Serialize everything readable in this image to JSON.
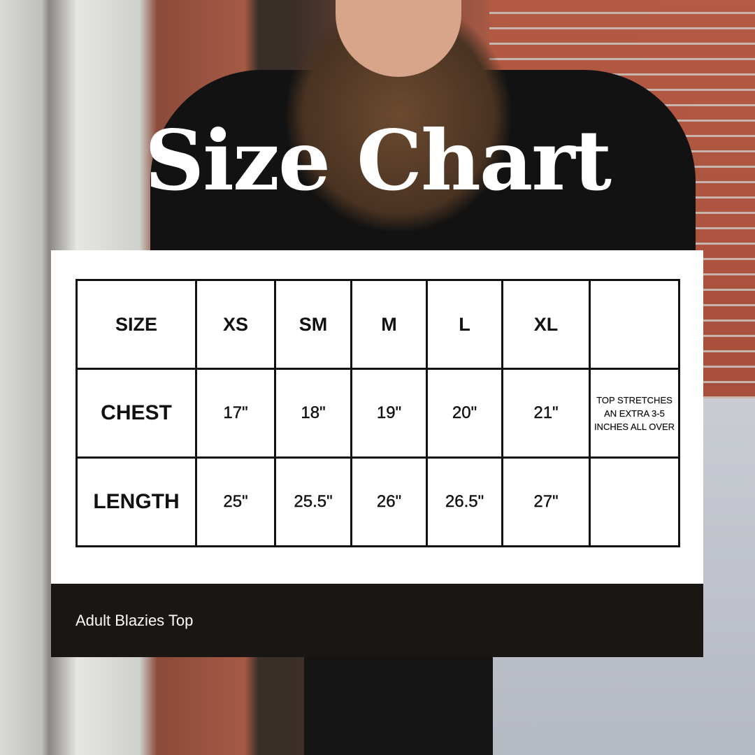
{
  "title": "Size Chart",
  "table": {
    "headers": [
      "SIZE",
      "XS",
      "SM",
      "M",
      "L",
      "XL",
      ""
    ],
    "rows": [
      {
        "label": "CHEST",
        "values": [
          "17\"",
          "18\"",
          "19\"",
          "20\"",
          "21\""
        ],
        "note": "TOP STRETCHES AN EXTRA 3-5 INCHES ALL OVER"
      },
      {
        "label": "LENGTH",
        "values": [
          "25\"",
          "25.5\"",
          "26\"",
          "26.5\"",
          "27\""
        ],
        "note": ""
      }
    ]
  },
  "footer": {
    "product": "Adult Blazies Top"
  },
  "colors": {
    "footer_bg": "#1a1614",
    "card_bg": "#ffffff",
    "text": "#111111"
  }
}
